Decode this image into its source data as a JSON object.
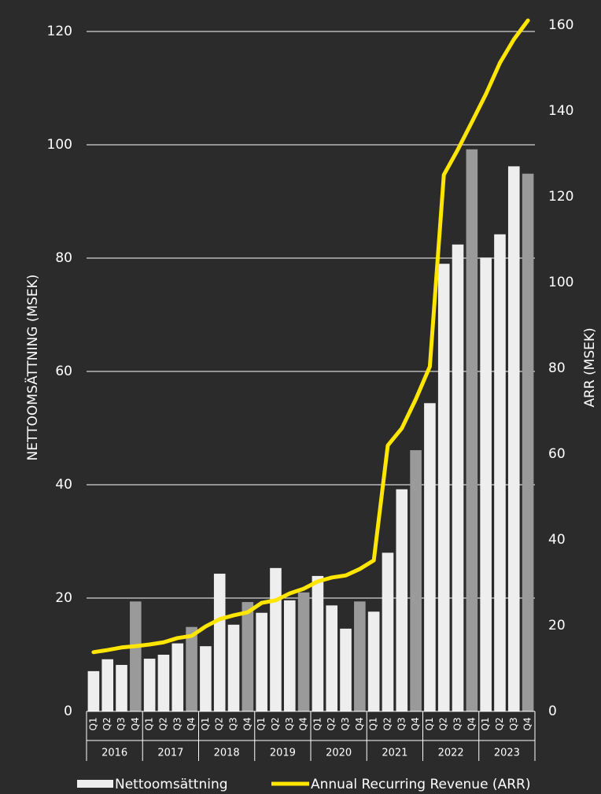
{
  "chart_data": {
    "type": "bar_line",
    "y_label": "NETTOOMSÄTTNING (MSEK)",
    "y2_label": "ARR (MSEK)",
    "categories": [
      "Q1",
      "Q2",
      "Q3",
      "Q4",
      "Q1",
      "Q2",
      "Q3",
      "Q4",
      "Q1",
      "Q2",
      "Q3",
      "Q4",
      "Q1",
      "Q2",
      "Q3",
      "Q4",
      "Q1",
      "Q2",
      "Q3",
      "Q4",
      "Q1",
      "Q2",
      "Q3",
      "Q4",
      "Q1",
      "Q2",
      "Q3",
      "Q4",
      "Q1",
      "Q2",
      "Q3",
      "Q4"
    ],
    "groups": [
      "2016",
      "2017",
      "2018",
      "2019",
      "2020",
      "2021",
      "2022",
      "2023"
    ],
    "series": [
      {
        "name": "Nettoomsättning",
        "kind": "bar",
        "color": "#eeeeee",
        "colors": [
          "#eeeeee",
          "#eeeeee",
          "#eeeeee",
          "#9a9a9a",
          "#eeeeee",
          "#eeeeee",
          "#eeeeee",
          "#9a9a9a",
          "#eeeeee",
          "#eeeeee",
          "#eeeeee",
          "#9a9a9a",
          "#eeeeee",
          "#eeeeee",
          "#eeeeee",
          "#9a9a9a",
          "#eeeeee",
          "#eeeeee",
          "#eeeeee",
          "#9a9a9a",
          "#eeeeee",
          "#eeeeee",
          "#eeeeee",
          "#9a9a9a",
          "#eeeeee",
          "#eeeeee",
          "#eeeeee",
          "#9a9a9a",
          "#eeeeee",
          "#eeeeee",
          "#eeeeee",
          "#9a9a9a"
        ],
        "values": [
          7.1,
          9.2,
          8.2,
          19.4,
          9.3,
          10,
          12,
          14.9,
          11.5,
          24.3,
          15.3,
          19.3,
          17.4,
          25.3,
          19.6,
          21,
          23.9,
          18.7,
          14.6,
          19.4,
          17.6,
          28,
          39.2,
          46.1,
          54.4,
          79,
          82.4,
          99.2,
          80.1,
          84.2,
          96.2,
          94.9
        ]
      },
      {
        "name": "Annual Recurring Revenue (ARR)",
        "kind": "line",
        "axis": "y2",
        "color": "#ffe600",
        "values": [
          13.8,
          14.3,
          14.9,
          15.2,
          15.6,
          16.1,
          17.1,
          17.6,
          19.8,
          21.5,
          22.4,
          23.1,
          25.3,
          25.9,
          27.5,
          28.6,
          30.3,
          31.2,
          31.7,
          33.2,
          35.2,
          62,
          66,
          72.8,
          80.4,
          125.1,
          131,
          137.4,
          143.9,
          151.2,
          156.7,
          161.1
        ]
      }
    ],
    "ylim": [
      0,
      120
    ],
    "yticks": [
      0,
      20,
      40,
      60,
      80,
      100,
      120
    ],
    "y2lim": [
      0,
      160
    ],
    "y2ticks": [
      0,
      20,
      40,
      60,
      80,
      100,
      120,
      140,
      160
    ],
    "grid": true,
    "legend": "bottom"
  }
}
